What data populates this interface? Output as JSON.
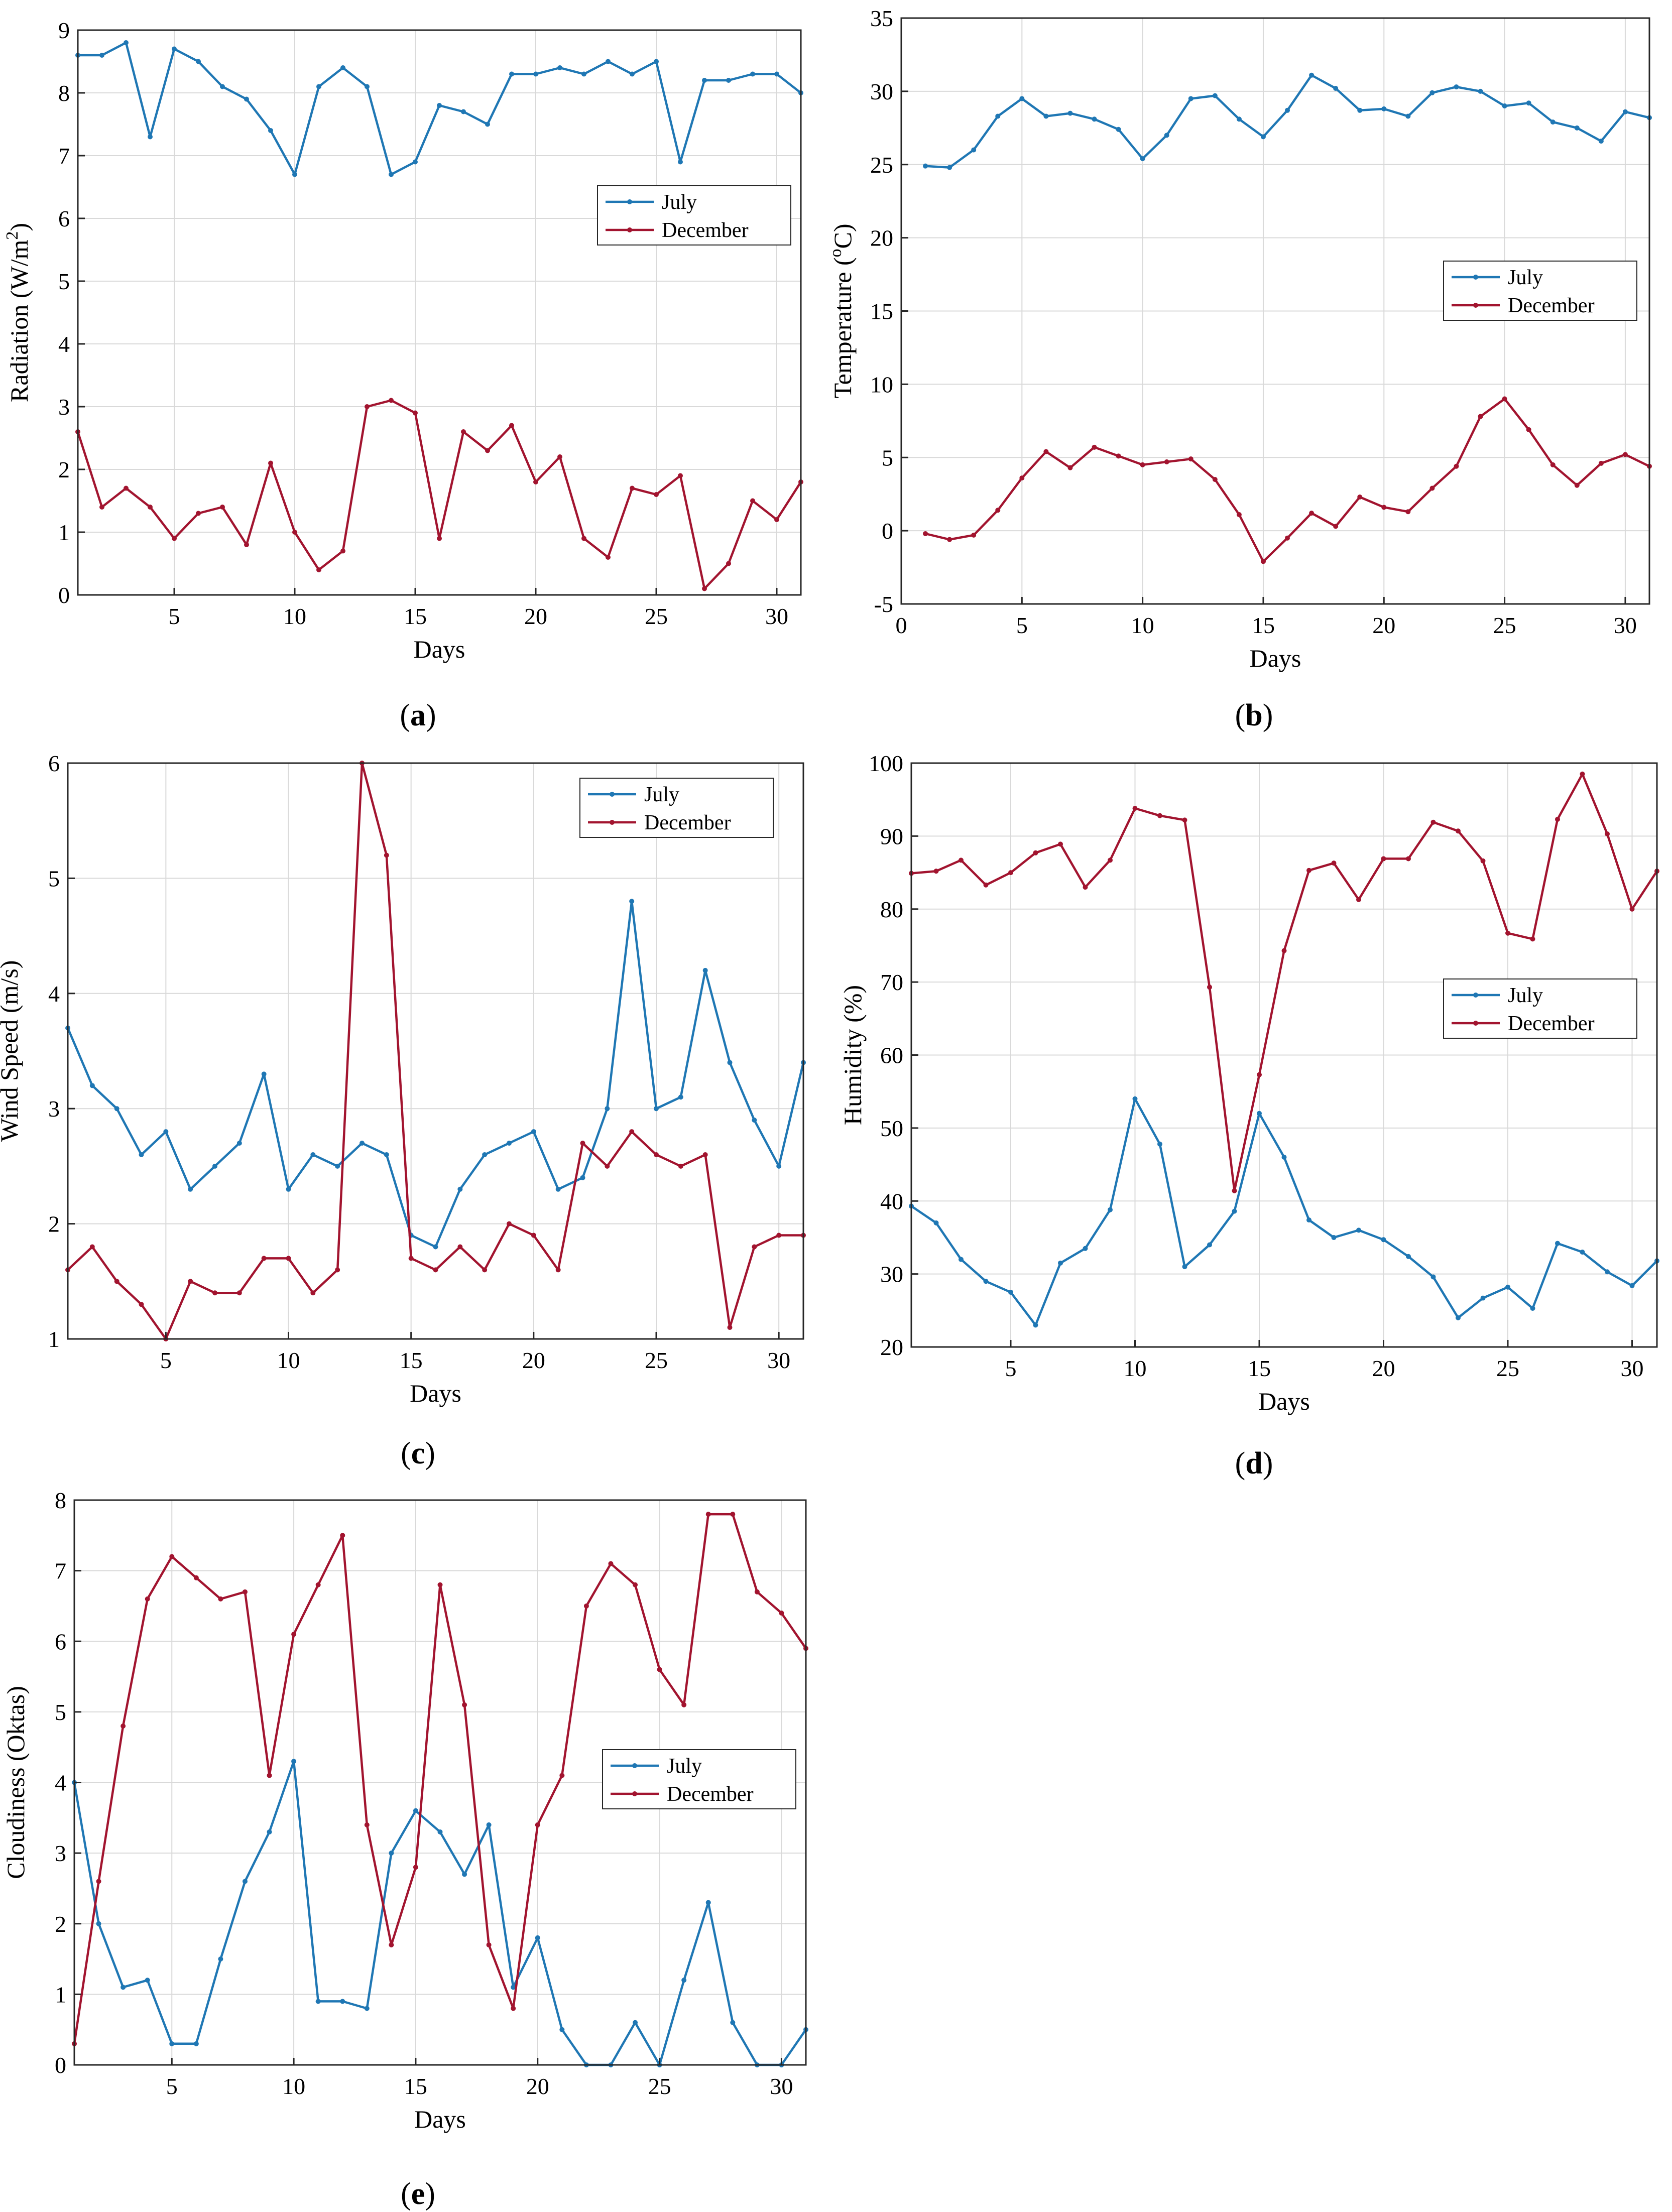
{
  "figure": {
    "panels": [
      "a",
      "b",
      "c",
      "d",
      "e"
    ]
  },
  "colors": {
    "july": "#1f77b4",
    "december": "#a2142f",
    "grid": "#d9d9d9"
  },
  "chart_data": [
    {
      "id": "a",
      "type": "line",
      "caption_letter": "a",
      "xlabel": "Days",
      "ylabel": "Radiation (W/m",
      "ylabel_sup": "2",
      "ylabel_end": ")",
      "xlim": [
        1,
        31
      ],
      "ylim": [
        0,
        9
      ],
      "xticks": [
        5,
        10,
        15,
        20,
        25,
        30
      ],
      "yticks": [
        0,
        1,
        2,
        3,
        4,
        5,
        6,
        7,
        8,
        9
      ],
      "legend_position": "right-middle",
      "x": [
        1,
        2,
        3,
        4,
        5,
        6,
        7,
        8,
        9,
        10,
        11,
        12,
        13,
        14,
        15,
        16,
        17,
        18,
        19,
        20,
        21,
        22,
        23,
        24,
        25,
        26,
        27,
        28,
        29,
        30,
        31
      ],
      "series": [
        {
          "name": "July",
          "values": [
            8.6,
            8.6,
            8.8,
            7.3,
            8.7,
            8.5,
            8.1,
            7.9,
            7.4,
            6.7,
            8.1,
            8.4,
            8.1,
            6.7,
            6.9,
            7.8,
            7.7,
            7.5,
            8.3,
            8.3,
            8.4,
            8.3,
            8.5,
            8.3,
            8.5,
            6.9,
            8.2,
            8.2,
            8.3,
            8.3,
            8.0
          ]
        },
        {
          "name": "December",
          "values": [
            2.6,
            1.4,
            1.7,
            1.4,
            0.9,
            1.3,
            1.4,
            0.8,
            2.1,
            1.0,
            0.4,
            0.7,
            3.0,
            3.1,
            2.9,
            0.9,
            2.6,
            2.3,
            2.7,
            1.8,
            2.2,
            0.9,
            0.6,
            1.7,
            1.6,
            1.9,
            0.1,
            0.5,
            1.5,
            1.2,
            1.8
          ]
        }
      ]
    },
    {
      "id": "b",
      "type": "line",
      "caption_letter": "b",
      "xlabel": "Days",
      "ylabel": "Temperature (",
      "ylabel_sup": "o",
      "ylabel_end": "C)",
      "xlim": [
        0,
        31
      ],
      "ylim": [
        -5,
        35
      ],
      "xticks": [
        0,
        5,
        10,
        15,
        20,
        25,
        30
      ],
      "yticks": [
        -5,
        0,
        5,
        10,
        15,
        20,
        25,
        30,
        35
      ],
      "legend_position": "right-middle",
      "x": [
        1,
        2,
        3,
        4,
        5,
        6,
        7,
        8,
        9,
        10,
        11,
        12,
        13,
        14,
        15,
        16,
        17,
        18,
        19,
        20,
        21,
        22,
        23,
        24,
        25,
        26,
        27,
        28,
        29,
        30,
        31
      ],
      "series": [
        {
          "name": "July",
          "values": [
            24.9,
            24.8,
            26.0,
            28.3,
            29.5,
            28.3,
            28.5,
            28.1,
            27.4,
            25.4,
            27.0,
            29.5,
            29.7,
            28.1,
            26.9,
            28.7,
            31.1,
            30.2,
            28.7,
            28.8,
            28.3,
            29.9,
            30.3,
            30.0,
            29.0,
            29.2,
            27.9,
            27.5,
            26.6,
            28.6,
            28.2
          ]
        },
        {
          "name": "December",
          "values": [
            -0.2,
            -0.6,
            -0.3,
            1.4,
            3.6,
            5.4,
            4.3,
            5.7,
            5.1,
            4.5,
            4.7,
            4.9,
            3.5,
            1.1,
            -2.1,
            -0.5,
            1.2,
            0.3,
            2.3,
            1.6,
            1.3,
            2.9,
            4.4,
            7.8,
            9.0,
            6.9,
            4.5,
            3.1,
            4.6,
            5.2,
            4.4
          ]
        }
      ]
    },
    {
      "id": "c",
      "type": "line",
      "caption_letter": "c",
      "xlabel": "Days",
      "ylabel": "Wind Speed (m/s)",
      "ylabel_sup": "",
      "ylabel_end": "",
      "xlim": [
        1,
        31
      ],
      "ylim": [
        1,
        6
      ],
      "xticks": [
        5,
        10,
        15,
        20,
        25,
        30
      ],
      "yticks": [
        1,
        2,
        3,
        4,
        5,
        6
      ],
      "legend_position": "top-right",
      "x": [
        1,
        2,
        3,
        4,
        5,
        6,
        7,
        8,
        9,
        10,
        11,
        12,
        13,
        14,
        15,
        16,
        17,
        18,
        19,
        20,
        21,
        22,
        23,
        24,
        25,
        26,
        27,
        28,
        29,
        30,
        31
      ],
      "series": [
        {
          "name": "July",
          "values": [
            3.7,
            3.2,
            3.0,
            2.6,
            2.8,
            2.3,
            2.5,
            2.7,
            3.3,
            2.3,
            2.6,
            2.5,
            2.7,
            2.6,
            1.9,
            1.8,
            2.3,
            2.6,
            2.7,
            2.8,
            2.3,
            2.4,
            3.0,
            4.8,
            3.0,
            3.1,
            4.2,
            3.4,
            2.9,
            2.5,
            3.4
          ]
        },
        {
          "name": "December",
          "values": [
            1.6,
            1.8,
            1.5,
            1.3,
            1.0,
            1.5,
            1.4,
            1.4,
            1.7,
            1.7,
            1.4,
            1.6,
            6.0,
            5.2,
            1.7,
            1.6,
            1.8,
            1.6,
            2.0,
            1.9,
            1.6,
            2.7,
            2.5,
            2.8,
            2.6,
            2.5,
            2.6,
            1.1,
            1.8,
            1.9,
            1.9
          ]
        }
      ]
    },
    {
      "id": "d",
      "type": "line",
      "caption_letter": "d",
      "xlabel": "Days",
      "ylabel": "Humidity (%)",
      "ylabel_sup": "",
      "ylabel_end": "",
      "xlim": [
        1,
        31
      ],
      "ylim": [
        20,
        100
      ],
      "xticks": [
        5,
        10,
        15,
        20,
        25,
        30
      ],
      "yticks": [
        20,
        30,
        40,
        50,
        60,
        70,
        80,
        90,
        100
      ],
      "legend_position": "right-middle",
      "x": [
        1,
        2,
        3,
        4,
        5,
        6,
        7,
        8,
        9,
        10,
        11,
        12,
        13,
        14,
        15,
        16,
        17,
        18,
        19,
        20,
        21,
        22,
        23,
        24,
        25,
        26,
        27,
        28,
        29,
        30,
        31
      ],
      "series": [
        {
          "name": "July",
          "values": [
            39.3,
            37.0,
            32.0,
            29.0,
            27.5,
            23.0,
            31.5,
            33.5,
            38.8,
            54.0,
            47.8,
            31.0,
            34.0,
            38.6,
            52.0,
            46.0,
            37.4,
            35.0,
            36.0,
            34.7,
            32.4,
            29.6,
            24.0,
            26.7,
            28.2,
            25.3,
            34.2,
            33.0,
            30.3,
            28.4,
            31.8
          ]
        },
        {
          "name": "December",
          "values": [
            84.9,
            85.2,
            86.7,
            83.3,
            85.0,
            87.7,
            88.9,
            83.0,
            86.7,
            93.8,
            92.8,
            92.2,
            69.3,
            41.4,
            57.3,
            74.3,
            85.3,
            86.3,
            81.3,
            86.9,
            86.9,
            91.9,
            90.7,
            86.6,
            76.7,
            75.9,
            92.3,
            98.5,
            90.3,
            80.0,
            85.2
          ]
        }
      ]
    },
    {
      "id": "e",
      "type": "line",
      "caption_letter": "e",
      "xlabel": "Days",
      "ylabel": "Cloudiness (Oktas)",
      "ylabel_sup": "",
      "ylabel_end": "",
      "xlim": [
        1,
        31
      ],
      "ylim": [
        0,
        8
      ],
      "xticks": [
        5,
        10,
        15,
        20,
        25,
        30
      ],
      "yticks": [
        0,
        1,
        2,
        3,
        4,
        5,
        6,
        7,
        8
      ],
      "legend_position": "right-middle",
      "x": [
        1,
        2,
        3,
        4,
        5,
        6,
        7,
        8,
        9,
        10,
        11,
        12,
        13,
        14,
        15,
        16,
        17,
        18,
        19,
        20,
        21,
        22,
        23,
        24,
        25,
        26,
        27,
        28,
        29,
        30,
        31
      ],
      "series": [
        {
          "name": "July",
          "values": [
            4.0,
            2.0,
            1.1,
            1.2,
            0.3,
            0.3,
            1.5,
            2.6,
            3.3,
            4.3,
            0.9,
            0.9,
            0.8,
            3.0,
            3.6,
            3.3,
            2.7,
            3.4,
            1.1,
            1.8,
            0.5,
            0.0,
            0.0,
            0.6,
            0.0,
            1.2,
            2.3,
            0.6,
            0.0,
            0.0,
            0.5
          ]
        },
        {
          "name": "December",
          "values": [
            0.3,
            2.6,
            4.8,
            6.6,
            7.2,
            6.9,
            6.6,
            6.7,
            4.1,
            6.1,
            6.8,
            7.5,
            3.4,
            1.7,
            2.8,
            6.8,
            5.1,
            1.7,
            0.8,
            3.4,
            4.1,
            6.5,
            7.1,
            6.8,
            5.6,
            5.1,
            7.8,
            7.8,
            6.7,
            6.4,
            5.9
          ]
        }
      ]
    }
  ]
}
